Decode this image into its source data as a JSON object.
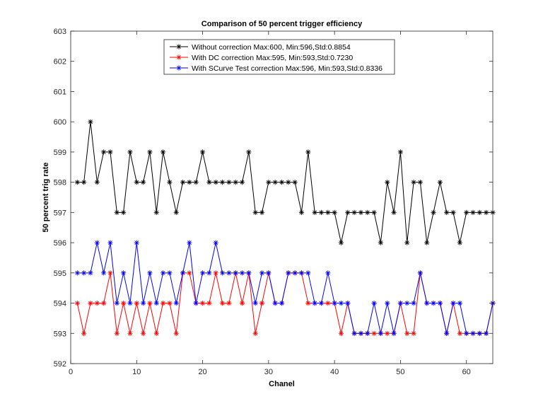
{
  "chart_data": {
    "type": "line",
    "title": "Comparison of 50 percent trigger efficiency",
    "xlabel": "Chanel",
    "ylabel": "50 percent trig rate",
    "xlim": [
      0,
      64
    ],
    "ylim": [
      592,
      603
    ],
    "xticks": [
      "0",
      "10",
      "20",
      "30",
      "40",
      "50",
      "60"
    ],
    "yticks": [
      "592",
      "593",
      "594",
      "595",
      "596",
      "597",
      "598",
      "599",
      "600",
      "601",
      "602",
      "603"
    ],
    "grid": false,
    "legend_position": "top-center",
    "x": [
      1,
      2,
      3,
      4,
      5,
      6,
      7,
      8,
      9,
      10,
      11,
      12,
      13,
      14,
      15,
      16,
      17,
      18,
      19,
      20,
      21,
      22,
      23,
      24,
      25,
      26,
      27,
      28,
      29,
      30,
      31,
      32,
      33,
      34,
      35,
      36,
      37,
      38,
      39,
      40,
      41,
      42,
      43,
      44,
      45,
      46,
      47,
      48,
      49,
      50,
      51,
      52,
      53,
      54,
      55,
      56,
      57,
      58,
      59,
      60,
      61,
      62,
      63,
      64
    ],
    "series": [
      {
        "name": "Without correction Max:600, Min:596,Std:0.8854",
        "color": "#000000",
        "values": [
          598,
          598,
          600,
          598,
          599,
          599,
          597,
          597,
          599,
          598,
          598,
          599,
          597,
          599,
          598,
          597,
          598,
          598,
          598,
          599,
          598,
          598,
          598,
          598,
          598,
          598,
          599,
          597,
          597,
          598,
          598,
          598,
          598,
          598,
          597,
          599,
          597,
          597,
          597,
          597,
          596,
          597,
          597,
          597,
          597,
          597,
          596,
          598,
          597,
          599,
          596,
          598,
          598,
          596,
          597,
          598,
          597,
          597,
          596,
          597,
          597,
          597,
          597,
          597
        ]
      },
      {
        "name": "With DC correction Max:595, Min:593,Std:0.7230",
        "color": "#ff0000",
        "values": [
          594,
          593,
          594,
          594,
          594,
          595,
          593,
          594,
          593,
          594,
          593,
          594,
          593,
          594,
          594,
          593,
          595,
          595,
          594,
          594,
          594,
          595,
          594,
          594,
          595,
          594,
          595,
          593,
          594,
          595,
          594,
          594,
          595,
          595,
          595,
          594,
          594,
          594,
          594,
          594,
          593,
          594,
          593,
          593,
          593,
          593,
          593,
          593,
          593,
          594,
          593,
          593,
          595,
          594,
          594,
          594,
          593,
          594,
          593,
          593,
          593,
          593,
          593,
          594
        ]
      },
      {
        "name": "With SCurve Test correction Max:596, Min:593,Std:0.8336",
        "color": "#0000ff",
        "values": [
          595,
          595,
          595,
          596,
          595,
          596,
          594,
          595,
          594,
          596,
          594,
          595,
          594,
          595,
          595,
          594,
          595,
          596,
          594,
          595,
          595,
          596,
          595,
          595,
          595,
          595,
          595,
          594,
          595,
          595,
          594,
          594,
          595,
          595,
          595,
          595,
          594,
          594,
          595,
          594,
          594,
          594,
          593,
          593,
          593,
          594,
          593,
          594,
          593,
          594,
          594,
          594,
          595,
          594,
          594,
          594,
          593,
          594,
          594,
          593,
          593,
          593,
          593,
          594
        ]
      }
    ]
  }
}
